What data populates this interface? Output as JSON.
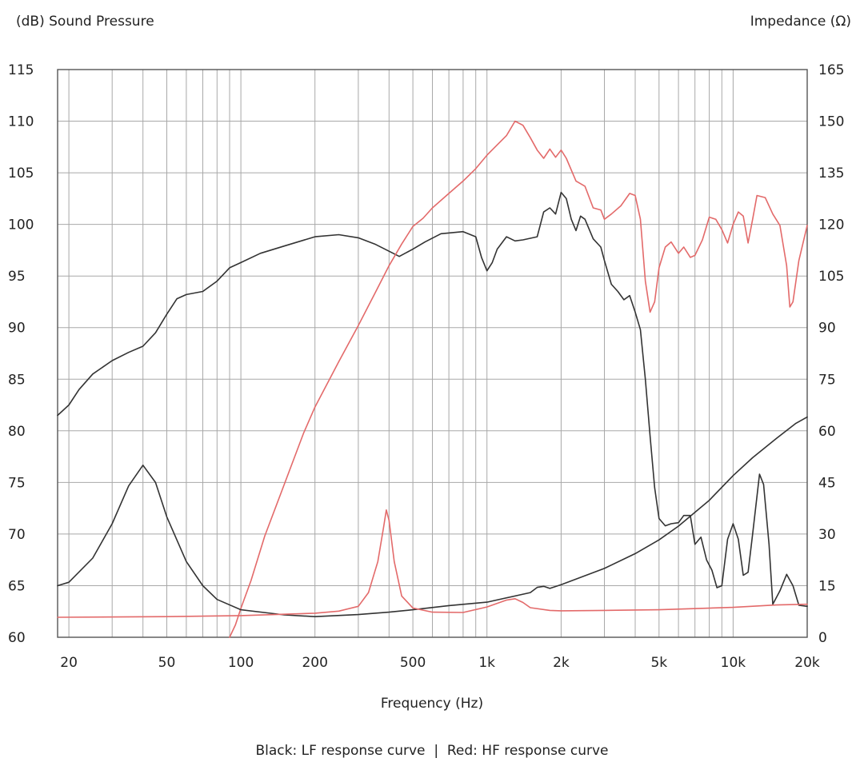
{
  "chart_data": {
    "type": "line",
    "xlabel": "Frequency (Hz)",
    "ylabel_left": "(dB) Sound Pressure",
    "ylabel_right": "Impedance (Ω)",
    "caption": "Black: LF response curve  |  Red: HF response curve",
    "x_scale": "log",
    "xlim": [
      18,
      20000
    ],
    "ylim_left": [
      60,
      115
    ],
    "ylim_right": [
      0,
      165
    ],
    "grid": true,
    "x_ticks": [
      {
        "value": 20,
        "label": "20"
      },
      {
        "value": 50,
        "label": "50"
      },
      {
        "value": 100,
        "label": "100"
      },
      {
        "value": 200,
        "label": "200"
      },
      {
        "value": 500,
        "label": "500"
      },
      {
        "value": 1000,
        "label": "1k"
      },
      {
        "value": 2000,
        "label": "2k"
      },
      {
        "value": 5000,
        "label": "5k"
      },
      {
        "value": 10000,
        "label": "10k"
      },
      {
        "value": 20000,
        "label": "20k"
      }
    ],
    "y_ticks_left": [
      60,
      65,
      70,
      75,
      80,
      85,
      90,
      95,
      100,
      105,
      110,
      115
    ],
    "y_ticks_right": [
      0,
      15,
      30,
      45,
      60,
      75,
      90,
      105,
      120,
      135,
      150,
      165
    ],
    "colors": {
      "lf": "#333333",
      "hf": "#e36a6a",
      "grid": "#a8a8a8",
      "frame": "#555555"
    },
    "series": [
      {
        "key": "lf_spl",
        "axis": "left",
        "color_key": "lf",
        "points": [
          [
            18,
            81.5
          ],
          [
            20,
            82.5
          ],
          [
            22,
            84
          ],
          [
            25,
            85.5
          ],
          [
            30,
            86.8
          ],
          [
            35,
            87.6
          ],
          [
            40,
            88.2
          ],
          [
            45,
            89.5
          ],
          [
            50,
            91.3
          ],
          [
            55,
            92.8
          ],
          [
            60,
            93.2
          ],
          [
            70,
            93.5
          ],
          [
            80,
            94.5
          ],
          [
            90,
            95.8
          ],
          [
            100,
            96.3
          ],
          [
            120,
            97.2
          ],
          [
            150,
            97.9
          ],
          [
            200,
            98.8
          ],
          [
            250,
            99.0
          ],
          [
            300,
            98.7
          ],
          [
            350,
            98.1
          ],
          [
            400,
            97.4
          ],
          [
            440,
            96.9
          ],
          [
            500,
            97.6
          ],
          [
            560,
            98.3
          ],
          [
            650,
            99.1
          ],
          [
            800,
            99.3
          ],
          [
            900,
            98.8
          ],
          [
            950,
            96.8
          ],
          [
            1000,
            95.5
          ],
          [
            1050,
            96.3
          ],
          [
            1100,
            97.6
          ],
          [
            1200,
            98.8
          ],
          [
            1300,
            98.4
          ],
          [
            1400,
            98.5
          ],
          [
            1600,
            98.8
          ],
          [
            1700,
            101.2
          ],
          [
            1800,
            101.6
          ],
          [
            1900,
            101.0
          ],
          [
            2000,
            103.1
          ],
          [
            2100,
            102.5
          ],
          [
            2200,
            100.5
          ],
          [
            2300,
            99.4
          ],
          [
            2400,
            100.8
          ],
          [
            2500,
            100.5
          ],
          [
            2700,
            98.6
          ],
          [
            2900,
            97.8
          ],
          [
            3000,
            96.5
          ],
          [
            3200,
            94.2
          ],
          [
            3400,
            93.5
          ],
          [
            3600,
            92.7
          ],
          [
            3800,
            93.1
          ],
          [
            4000,
            91.5
          ],
          [
            4200,
            89.8
          ],
          [
            4400,
            85.0
          ],
          [
            4600,
            79.5
          ],
          [
            4800,
            74.5
          ],
          [
            5000,
            71.5
          ],
          [
            5300,
            70.8
          ],
          [
            5600,
            71.0
          ],
          [
            6000,
            71.1
          ],
          [
            6300,
            71.8
          ],
          [
            6700,
            71.8
          ],
          [
            7000,
            69.0
          ],
          [
            7400,
            69.7
          ],
          [
            7800,
            67.5
          ],
          [
            8200,
            66.5
          ],
          [
            8600,
            64.8
          ],
          [
            9000,
            65.0
          ],
          [
            9500,
            69.5
          ],
          [
            10000,
            71.0
          ],
          [
            10500,
            69.5
          ],
          [
            11000,
            66.0
          ],
          [
            11500,
            66.3
          ],
          [
            12000,
            70.0
          ],
          [
            12800,
            75.8
          ],
          [
            13300,
            74.8
          ],
          [
            14000,
            69.0
          ],
          [
            14500,
            63.2
          ],
          [
            15500,
            64.5
          ],
          [
            16500,
            66.1
          ],
          [
            17500,
            65.0
          ],
          [
            18500,
            63.1
          ],
          [
            20000,
            63.0
          ]
        ]
      },
      {
        "key": "hf_spl",
        "axis": "left",
        "color_key": "hf",
        "points": [
          [
            90,
            60
          ],
          [
            95,
            61.2
          ],
          [
            100,
            62.8
          ],
          [
            110,
            65.5
          ],
          [
            125,
            69.8
          ],
          [
            150,
            74.8
          ],
          [
            180,
            79.8
          ],
          [
            200,
            82.3
          ],
          [
            250,
            86.7
          ],
          [
            300,
            90.2
          ],
          [
            350,
            93.3
          ],
          [
            400,
            96.0
          ],
          [
            450,
            98.1
          ],
          [
            500,
            99.8
          ],
          [
            550,
            100.6
          ],
          [
            600,
            101.6
          ],
          [
            700,
            103.0
          ],
          [
            800,
            104.2
          ],
          [
            900,
            105.4
          ],
          [
            1000,
            106.7
          ],
          [
            1100,
            107.7
          ],
          [
            1200,
            108.6
          ],
          [
            1300,
            110.0
          ],
          [
            1400,
            109.6
          ],
          [
            1500,
            108.4
          ],
          [
            1600,
            107.2
          ],
          [
            1700,
            106.4
          ],
          [
            1800,
            107.3
          ],
          [
            1900,
            106.5
          ],
          [
            2000,
            107.2
          ],
          [
            2100,
            106.4
          ],
          [
            2300,
            104.2
          ],
          [
            2500,
            103.7
          ],
          [
            2700,
            101.6
          ],
          [
            2900,
            101.4
          ],
          [
            3000,
            100.5
          ],
          [
            3200,
            101.0
          ],
          [
            3500,
            101.8
          ],
          [
            3800,
            103.0
          ],
          [
            4000,
            102.8
          ],
          [
            4200,
            100.5
          ],
          [
            4400,
            94.5
          ],
          [
            4600,
            91.5
          ],
          [
            4800,
            92.5
          ],
          [
            5000,
            95.8
          ],
          [
            5300,
            97.8
          ],
          [
            5600,
            98.3
          ],
          [
            6000,
            97.2
          ],
          [
            6300,
            97.8
          ],
          [
            6700,
            96.8
          ],
          [
            7000,
            97.0
          ],
          [
            7500,
            98.5
          ],
          [
            8000,
            100.7
          ],
          [
            8500,
            100.5
          ],
          [
            9000,
            99.5
          ],
          [
            9500,
            98.2
          ],
          [
            10000,
            100.0
          ],
          [
            10500,
            101.2
          ],
          [
            11000,
            100.8
          ],
          [
            11500,
            98.2
          ],
          [
            12000,
            100.5
          ],
          [
            12500,
            102.8
          ],
          [
            13500,
            102.6
          ],
          [
            14500,
            101.0
          ],
          [
            15500,
            99.9
          ],
          [
            16500,
            96.0
          ],
          [
            17000,
            92.0
          ],
          [
            17500,
            92.5
          ],
          [
            18500,
            96.5
          ],
          [
            20000,
            99.9
          ]
        ]
      },
      {
        "key": "lf_impedance",
        "axis": "right",
        "color_key": "lf",
        "points": [
          [
            18,
            15
          ],
          [
            20,
            16
          ],
          [
            25,
            23
          ],
          [
            30,
            33
          ],
          [
            35,
            44
          ],
          [
            40,
            50
          ],
          [
            45,
            45
          ],
          [
            50,
            35
          ],
          [
            60,
            22
          ],
          [
            70,
            15
          ],
          [
            80,
            11
          ],
          [
            100,
            8
          ],
          [
            150,
            6.5
          ],
          [
            200,
            6
          ],
          [
            300,
            6.6
          ],
          [
            400,
            7.3
          ],
          [
            500,
            8
          ],
          [
            700,
            9.2
          ],
          [
            1000,
            10.2
          ],
          [
            1500,
            13
          ],
          [
            1600,
            14.5
          ],
          [
            1700,
            14.8
          ],
          [
            1800,
            14.2
          ],
          [
            2000,
            15.3
          ],
          [
            3000,
            20
          ],
          [
            4000,
            24.3
          ],
          [
            5000,
            28.3
          ],
          [
            6000,
            32.3
          ],
          [
            8000,
            39.8
          ],
          [
            10000,
            47
          ],
          [
            12000,
            52.2
          ],
          [
            15000,
            57.8
          ],
          [
            18000,
            62.2
          ],
          [
            20000,
            64
          ]
        ]
      },
      {
        "key": "hf_impedance",
        "axis": "right",
        "color_key": "hf",
        "points": [
          [
            18,
            5.8
          ],
          [
            50,
            6
          ],
          [
            100,
            6.3
          ],
          [
            200,
            7
          ],
          [
            250,
            7.6
          ],
          [
            300,
            9
          ],
          [
            330,
            13
          ],
          [
            360,
            22
          ],
          [
            380,
            32
          ],
          [
            390,
            37
          ],
          [
            400,
            34
          ],
          [
            420,
            22
          ],
          [
            450,
            12
          ],
          [
            500,
            8.5
          ],
          [
            600,
            7.3
          ],
          [
            800,
            7.2
          ],
          [
            1000,
            8.8
          ],
          [
            1200,
            10.8
          ],
          [
            1300,
            11.2
          ],
          [
            1400,
            10.1
          ],
          [
            1500,
            8.6
          ],
          [
            1800,
            7.8
          ],
          [
            2000,
            7.7
          ],
          [
            3000,
            7.8
          ],
          [
            5000,
            8
          ],
          [
            10000,
            8.7
          ],
          [
            15000,
            9.4
          ],
          [
            20000,
            9.6
          ]
        ]
      }
    ]
  }
}
